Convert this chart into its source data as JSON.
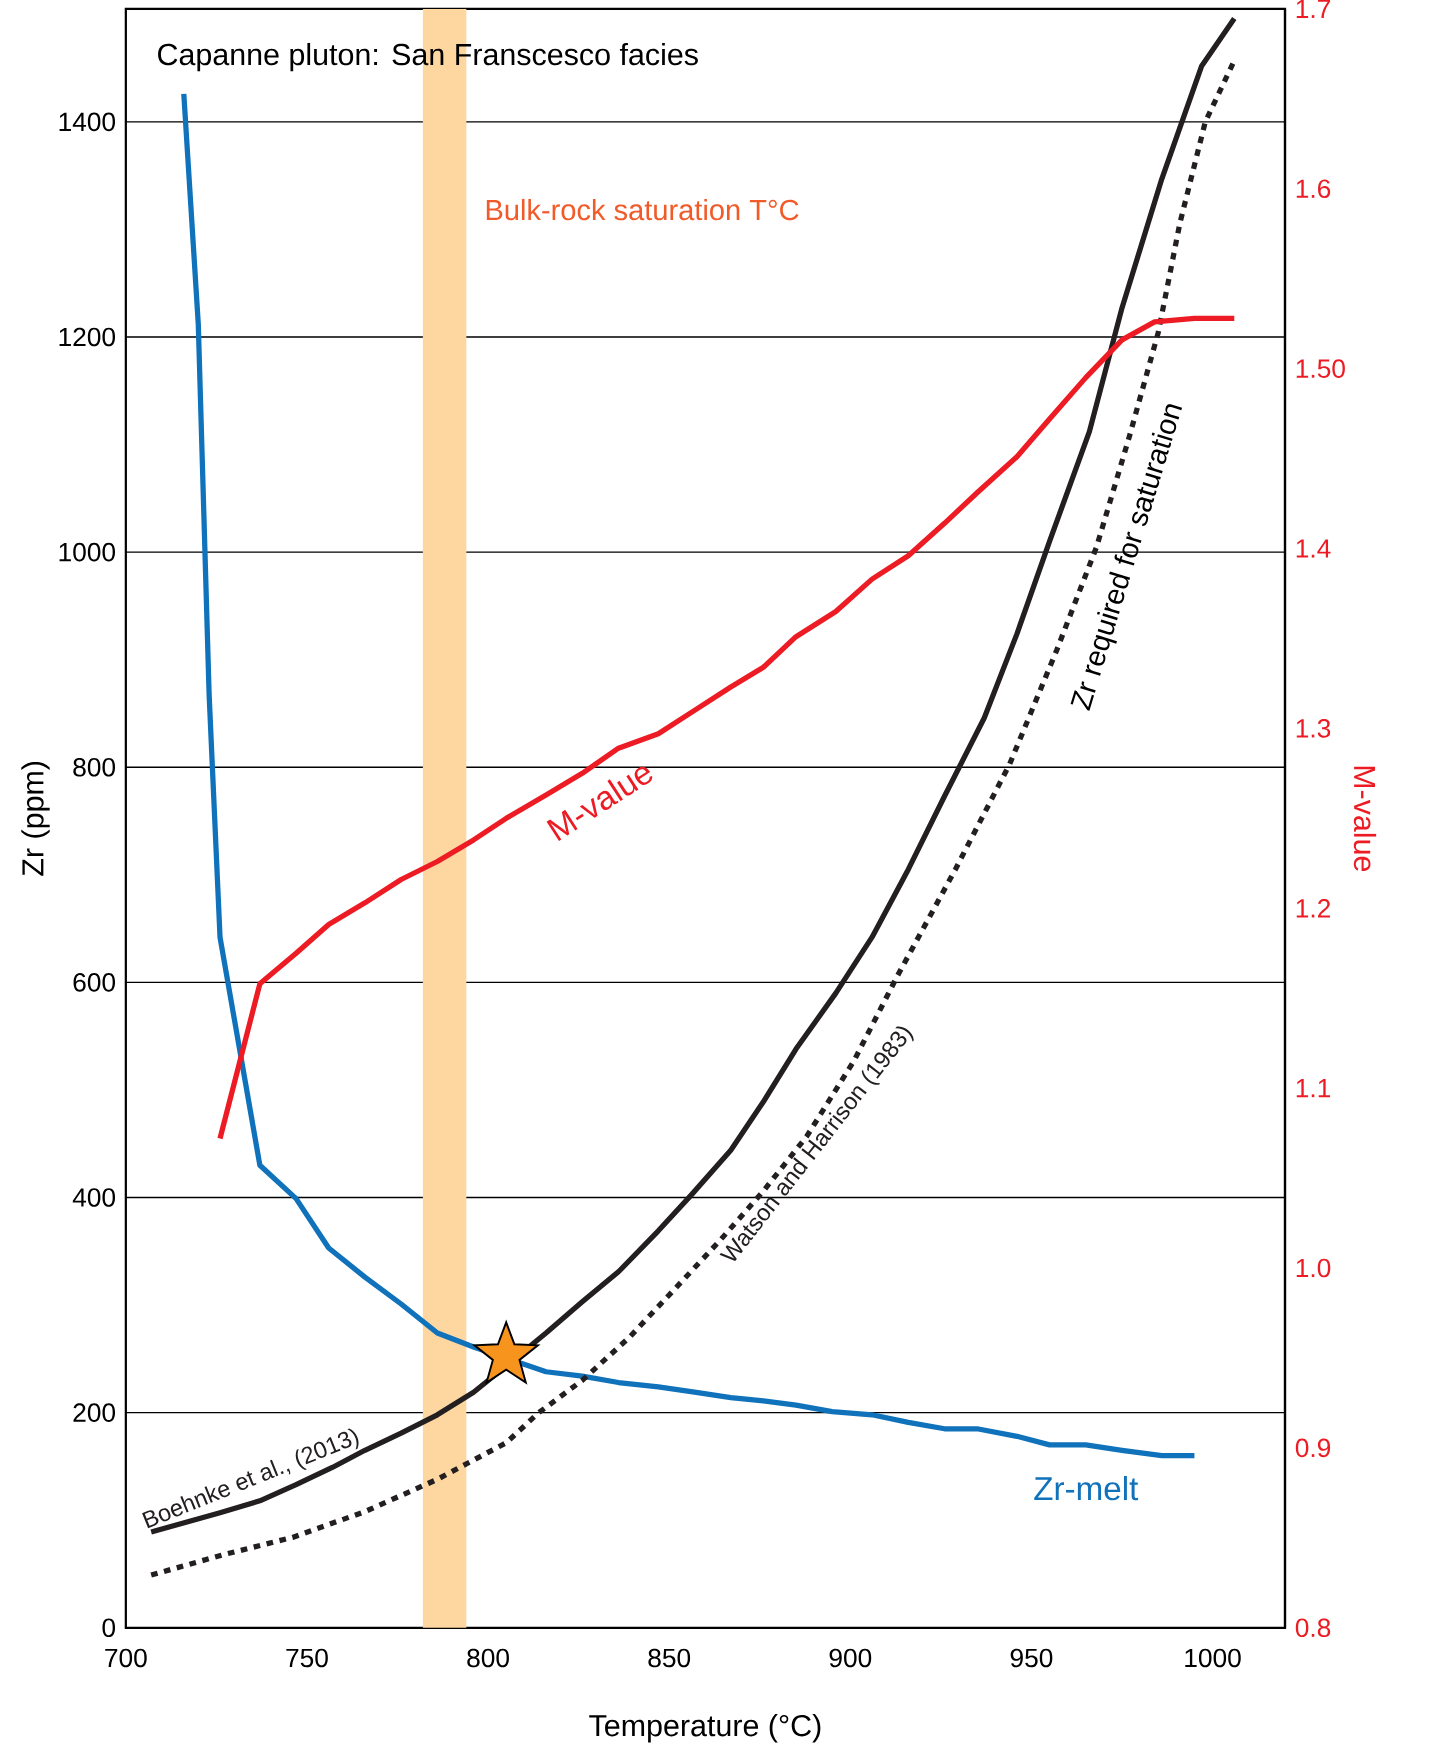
{
  "chart_data": {
    "type": "line",
    "title": "Capanne pluton: San Franscesco facies",
    "xlabel": "Temperature (°C)",
    "ylabel": "Zr (ppm)",
    "y2label": "M-value",
    "xlim": [
      700,
      1020
    ],
    "xticks": [
      700,
      750,
      800,
      850,
      900,
      950,
      1000
    ],
    "ylim": [
      0,
      1505
    ],
    "yticks": [
      0,
      200,
      400,
      600,
      800,
      1000,
      1200,
      1400
    ],
    "y2lim": [
      0.8,
      1.7
    ],
    "y2ticks": [
      0.8,
      0.9,
      {
        "value": 1.0,
        "label": "1.0"
      },
      1.1,
      1.2,
      1.3,
      1.4,
      {
        "value": 1.5,
        "label": "1.50"
      },
      1.6,
      1.7
    ],
    "grid": "y",
    "bands": [
      {
        "axis": "x",
        "from": 782,
        "to": 794,
        "label": "Bulk-rock saturation T°C",
        "color": "#fdd6a0"
      }
    ],
    "annotations": [
      {
        "text": "Zr required for saturation",
        "x": 968,
        "y": 1005
      }
    ],
    "series": [
      {
        "name": "Zr-melt",
        "color": "#0f72ba",
        "line_style": "solid",
        "x": [
          716,
          720,
          723,
          726,
          737,
          747,
          756,
          766,
          776,
          786,
          796,
          805,
          816,
          826,
          836,
          847,
          857,
          867,
          876,
          885,
          895,
          906,
          916,
          926,
          935,
          946,
          955,
          965,
          975,
          986,
          995
        ],
        "values": [
          1426,
          1212,
          867,
          642,
          430,
          399,
          353,
          326,
          301,
          274,
          261,
          null,
          238,
          234,
          228,
          224,
          219,
          214,
          211,
          207,
          201,
          198,
          191,
          185,
          185,
          178,
          170,
          170,
          165,
          160,
          160
        ]
      },
      {
        "name": "M-value",
        "color": "#ed1c24",
        "line_style": "solid",
        "axis": "y2",
        "x": [
          726,
          737,
          747,
          756,
          766,
          776,
          786,
          796,
          805,
          816,
          826,
          836,
          847,
          857,
          867,
          876,
          885,
          896,
          906,
          916,
          926,
          935,
          946,
          955,
          965,
          975,
          984,
          995,
          1006
        ],
        "values": [
          1.072,
          1.158,
          1.175,
          1.191,
          1.203,
          1.216,
          1.226,
          1.238,
          1.25,
          1.263,
          1.275,
          1.289,
          1.297,
          1.31,
          1.323,
          1.334,
          1.351,
          1.365,
          1.383,
          1.396,
          1.414,
          1.431,
          1.451,
          1.472,
          1.495,
          1.516,
          1.526,
          1.528,
          1.528
        ]
      },
      {
        "name": "Boehnke et al., (2013)",
        "color": "#231f20",
        "line_style": "solid",
        "x": [
          707,
          726,
          737,
          747,
          757,
          766,
          776,
          786,
          796,
          803,
          816,
          826,
          836,
          847,
          856,
          867,
          876,
          885,
          896,
          906,
          916,
          926,
          937,
          946,
          955,
          966,
          975,
          986,
          997,
          1006
        ],
        "values": [
          89,
          107,
          118,
          133,
          149,
          165,
          181,
          198,
          219,
          238,
          274,
          303,
          331,
          369,
          402,
          444,
          489,
          538,
          590,
          642,
          705,
          773,
          846,
          924,
          1010,
          1112,
          1227,
          1347,
          1452,
          1496
        ]
      },
      {
        "name": "Watson and Harrison (1983)",
        "color": "#231f20",
        "line_style": "dotted",
        "x": [
          707,
          727,
          746,
          766,
          786,
          805,
          814,
          826,
          839,
          851,
          864,
          876,
          888,
          901,
          913,
          929,
          944,
          957,
          968,
          977,
          985,
          991,
          998,
          1006
        ],
        "values": [
          49,
          68,
          84,
          108,
          138,
          172,
          200,
          230,
          270,
          313,
          360,
          406,
          457,
          527,
          606,
          705,
          803,
          909,
          1005,
          1107,
          1204,
          1306,
          1400,
          1457
        ]
      },
      {
        "type": "scatter",
        "marker": "star",
        "color": "#f7941d",
        "x": [
          805
        ],
        "values": [
          253
        ]
      }
    ]
  }
}
